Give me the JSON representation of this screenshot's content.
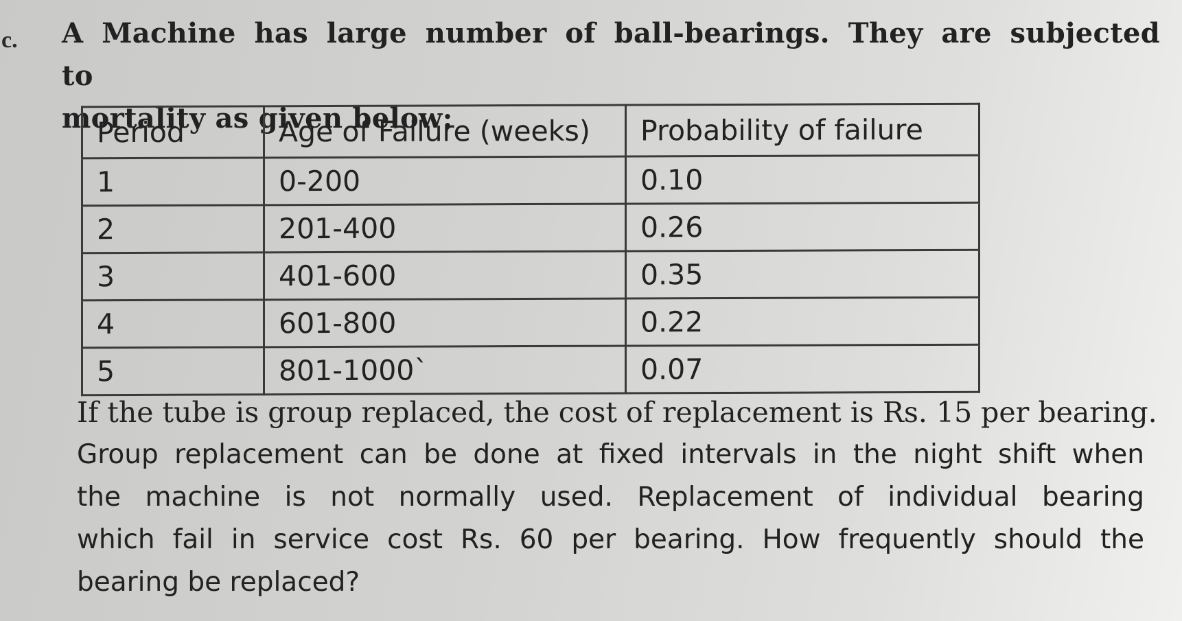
{
  "marker": "c.",
  "question": {
    "line1": "A Machine has large number of ball-bearings. They are subjected to",
    "line2": "mortality as given below:"
  },
  "table": {
    "headers": [
      "Period",
      "Age of Failure (weeks)",
      "Probability of failure"
    ],
    "rows": [
      [
        "1",
        "0-200",
        "0.10"
      ],
      [
        "2",
        "201-400",
        "0.26"
      ],
      [
        "3",
        "401-600",
        "0.35"
      ],
      [
        "4",
        "601-800",
        "0.22"
      ],
      [
        "5",
        "801-1000`",
        "0.07"
      ]
    ]
  },
  "paragraph": {
    "line1": "If the tube is group replaced, the cost of replacement is Rs. 15 per bearing.",
    "line2": "Group replacement can be done at fixed intervals in the night shift when",
    "line3": "the machine is not normally used. Replacement of individual bearing",
    "line4": "which fail in service cost Rs. 60 per bearing. How frequently should the",
    "line5": "bearing be replaced?"
  }
}
